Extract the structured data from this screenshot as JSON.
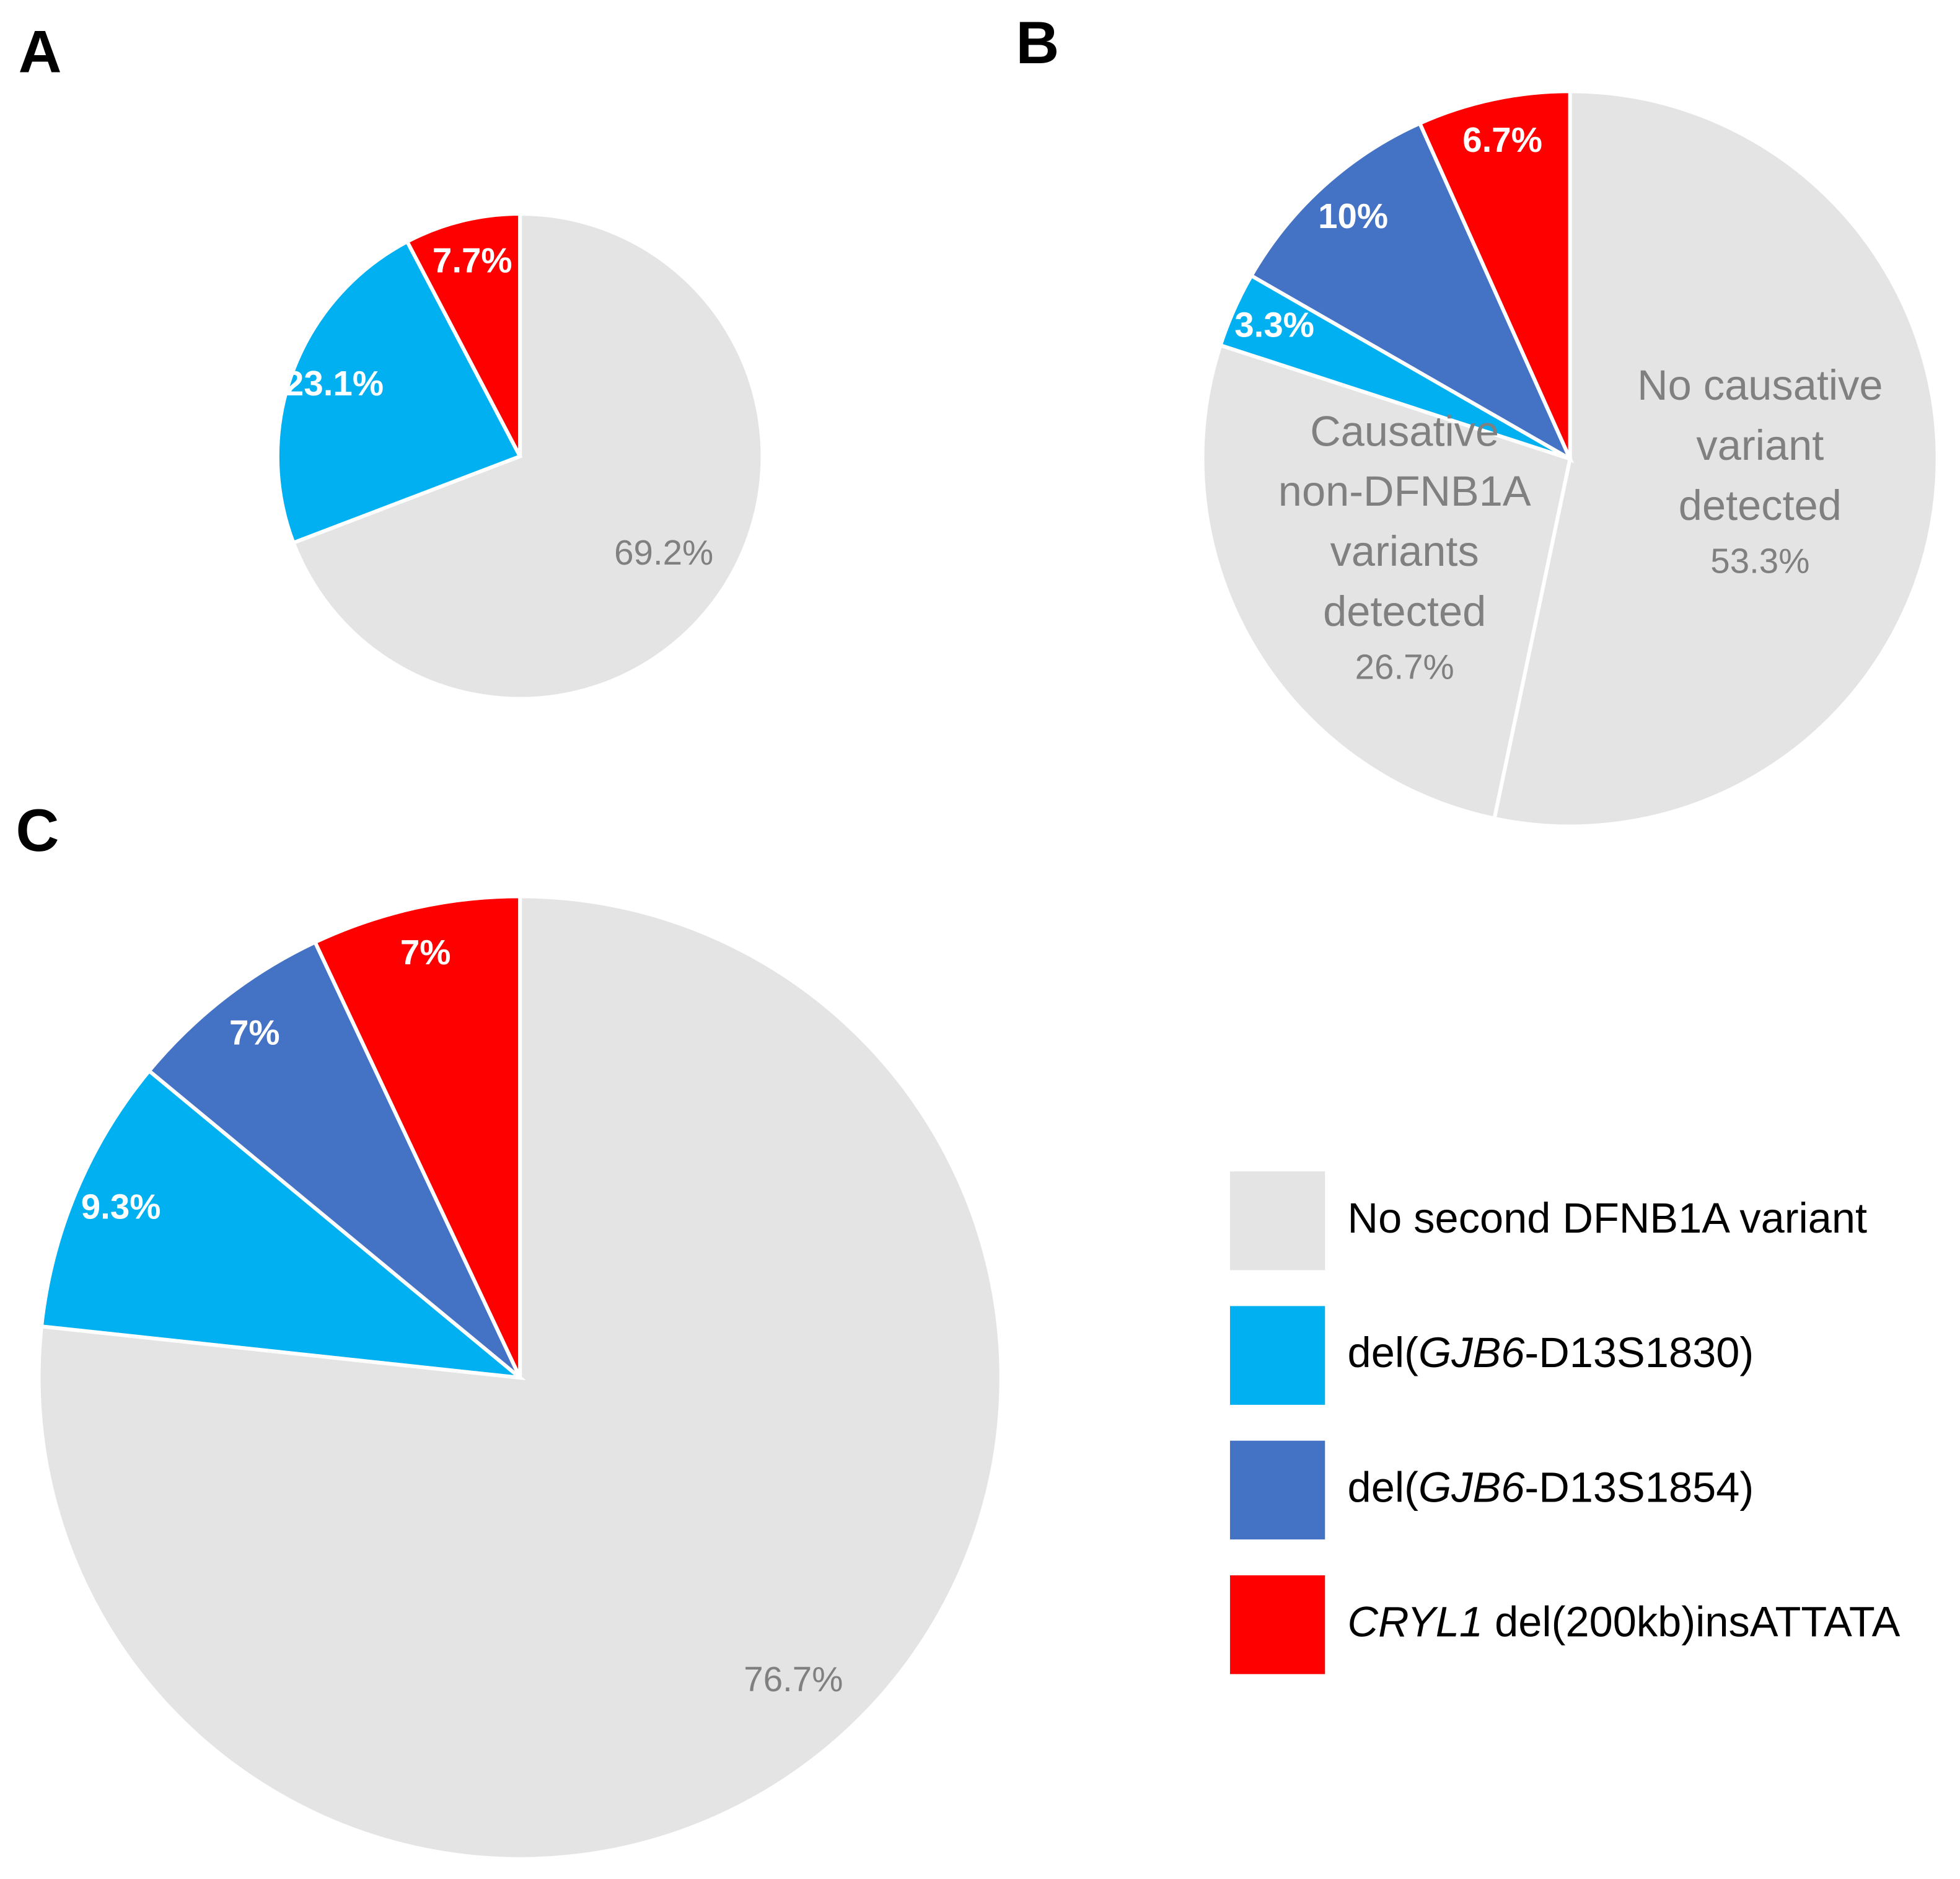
{
  "chart_data": [
    {
      "type": "pie",
      "panel": "A",
      "values": [
        69.2,
        23.1,
        7.7
      ],
      "value_labels": [
        "69.2%",
        "23.1%",
        "7.7%"
      ],
      "colors": [
        "#e4e4e4",
        "#00b0f0",
        "#ff0000"
      ]
    },
    {
      "type": "pie",
      "panel": "B",
      "values": [
        53.3,
        26.7,
        3.3,
        10,
        6.7
      ],
      "value_labels": [
        "53.3%",
        "26.7%",
        "3.3%",
        "10%",
        "6.7%"
      ],
      "labels": [
        [
          "No causative",
          "variant",
          "detected"
        ],
        [
          "Causative",
          "non-DFNB1A",
          "variants",
          "detected"
        ],
        null,
        null,
        null
      ],
      "colors": [
        "#e4e4e4",
        "#e4e4e4",
        "#00b0f0",
        "#4472c4",
        "#ff0000"
      ]
    },
    {
      "type": "pie",
      "panel": "C",
      "values": [
        76.7,
        9.3,
        7,
        7
      ],
      "value_labels": [
        "76.7%",
        "9.3%",
        "7%",
        "7%"
      ],
      "colors": [
        "#e4e4e4",
        "#00b0f0",
        "#4472c4",
        "#ff0000"
      ]
    }
  ],
  "legend": {
    "items": [
      {
        "color": "#e4e4e4",
        "parts": [
          {
            "text": "No second DFNB1A variant"
          }
        ]
      },
      {
        "color": "#00b0f0",
        "parts": [
          {
            "text": "del("
          },
          {
            "text": "GJB6",
            "italic": true
          },
          {
            "text": "-D13S1830)"
          }
        ]
      },
      {
        "color": "#4472c4",
        "parts": [
          {
            "text": "del("
          },
          {
            "text": "GJB6",
            "italic": true
          },
          {
            "text": "-D13S1854)"
          }
        ]
      },
      {
        "color": "#ff0000",
        "parts": [
          {
            "text": "CRYL1",
            "italic": true
          },
          {
            "text": " del(200kb)insATTATA"
          }
        ]
      }
    ]
  }
}
